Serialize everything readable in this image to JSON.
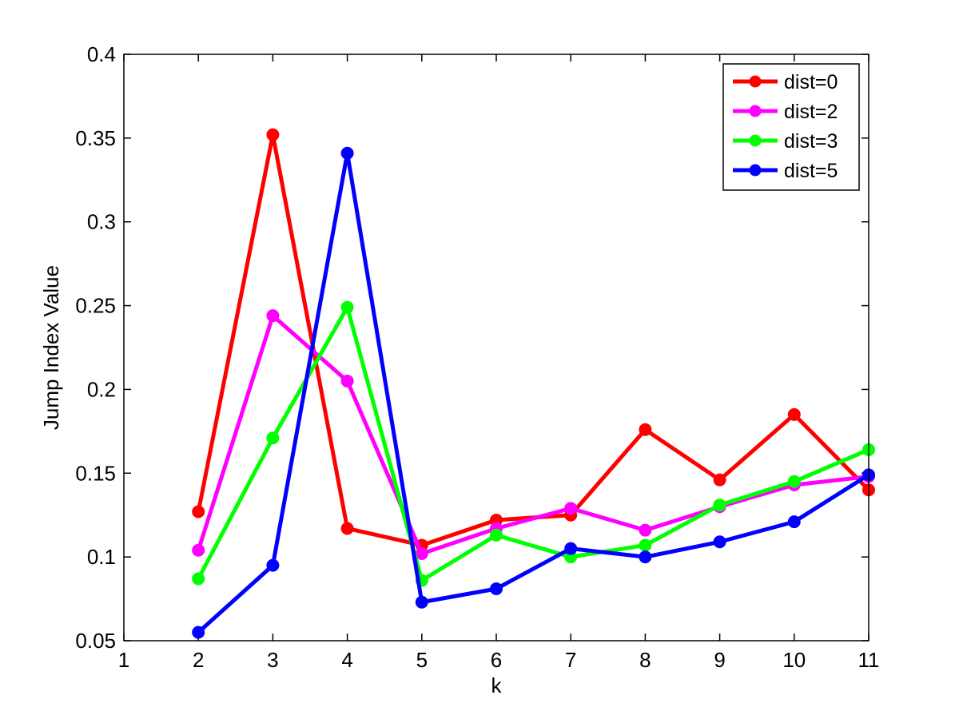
{
  "chart_data": {
    "type": "line",
    "title": "",
    "xlabel": "k",
    "ylabel": "Jump Index Value",
    "xlim": [
      1,
      11
    ],
    "ylim": [
      0.05,
      0.4
    ],
    "xticks": [
      1,
      2,
      3,
      4,
      5,
      6,
      7,
      8,
      9,
      10,
      11
    ],
    "yticks": [
      0.05,
      0.1,
      0.15,
      0.2,
      0.25,
      0.3,
      0.35,
      0.4
    ],
    "ytick_labels": [
      "0.05",
      "0.1",
      "0.15",
      "0.2",
      "0.25",
      "0.3",
      "0.35",
      "0.4"
    ],
    "grid": false,
    "legend_position": "top-right",
    "x": [
      2,
      3,
      4,
      5,
      6,
      7,
      8,
      9,
      10,
      11
    ],
    "series": [
      {
        "name": "dist=0",
        "color": "#ff0000",
        "values": [
          0.127,
          0.352,
          0.117,
          0.107,
          0.122,
          0.125,
          0.176,
          0.146,
          0.185,
          0.14
        ]
      },
      {
        "name": "dist=2",
        "color": "#ff00ff",
        "values": [
          0.104,
          0.244,
          0.205,
          0.102,
          0.117,
          0.129,
          0.116,
          0.13,
          0.143,
          0.148
        ]
      },
      {
        "name": "dist=3",
        "color": "#00ff00",
        "values": [
          0.087,
          0.171,
          0.249,
          0.086,
          0.113,
          0.1,
          0.107,
          0.131,
          0.145,
          0.164
        ]
      },
      {
        "name": "dist=5",
        "color": "#0000ff",
        "values": [
          0.055,
          0.095,
          0.341,
          0.073,
          0.081,
          0.105,
          0.1,
          0.109,
          0.121,
          0.149
        ]
      }
    ]
  }
}
